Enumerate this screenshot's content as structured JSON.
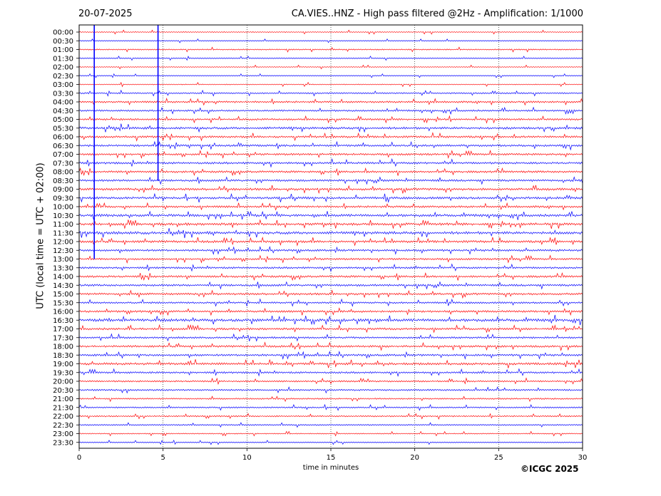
{
  "header": {
    "date": "20-07-2025",
    "title": "CA.VIES..HNZ - High pass filtered @2Hz - Amplification: 1/1000"
  },
  "footer": {
    "copyright": "©ICGC 2025"
  },
  "colors": {
    "even_trace": "#ff0000",
    "odd_trace": "#0000ff",
    "frame": "#000000",
    "grid": "#000000"
  },
  "chart_data": {
    "type": "line",
    "title": "CA.VIES..HNZ - High pass filtered @2Hz - Amplification: 1/1000",
    "xlabel": "time in minutes",
    "ylabel": "UTC (local time = UTC + 02:00)",
    "xlim": [
      0,
      30
    ],
    "x_ticks": [
      0,
      5,
      10,
      15,
      20,
      25,
      30
    ],
    "grid": "vertical dotted at every 5 minutes",
    "row_labels": [
      "00:00",
      "00:30",
      "01:00",
      "01:30",
      "02:00",
      "02:30",
      "03:00",
      "03:30",
      "04:00",
      "04:30",
      "05:00",
      "05:30",
      "06:00",
      "06:30",
      "07:00",
      "07:30",
      "08:00",
      "08:30",
      "09:00",
      "09:30",
      "10:00",
      "10:30",
      "11:00",
      "11:30",
      "12:00",
      "12:30",
      "13:00",
      "13:30",
      "14:00",
      "14:30",
      "15:00",
      "15:30",
      "16:00",
      "16:30",
      "17:00",
      "17:30",
      "18:00",
      "18:30",
      "19:00",
      "19:30",
      "20:00",
      "20:30",
      "21:00",
      "21:30",
      "22:00",
      "22:30",
      "23:00",
      "23:30"
    ],
    "trace_color_order": [
      "red",
      "blue"
    ],
    "notable_events": [
      {
        "row": "00:00",
        "minute": 0.9,
        "description": "large vertical spike spanning many rows",
        "color": "blue"
      },
      {
        "row": "00:00",
        "minute": 4.7,
        "description": "large vertical spike spanning many rows",
        "color": "blue"
      }
    ],
    "activity_level": [
      0.1,
      0.05,
      0.2,
      0.1,
      0.05,
      0.05,
      0.1,
      0.3,
      0.5,
      0.45,
      0.5,
      0.7,
      0.6,
      0.6,
      0.55,
      0.6,
      0.6,
      0.6,
      0.7,
      0.7,
      0.6,
      0.8,
      0.8,
      0.9,
      0.7,
      0.6,
      0.5,
      0.5,
      0.6,
      0.6,
      0.6,
      0.5,
      0.6,
      0.9,
      0.6,
      0.5,
      0.6,
      0.6,
      0.7,
      0.5,
      0.4,
      0.4,
      0.3,
      0.3,
      0.3,
      0.2,
      0.15,
      0.1
    ]
  }
}
